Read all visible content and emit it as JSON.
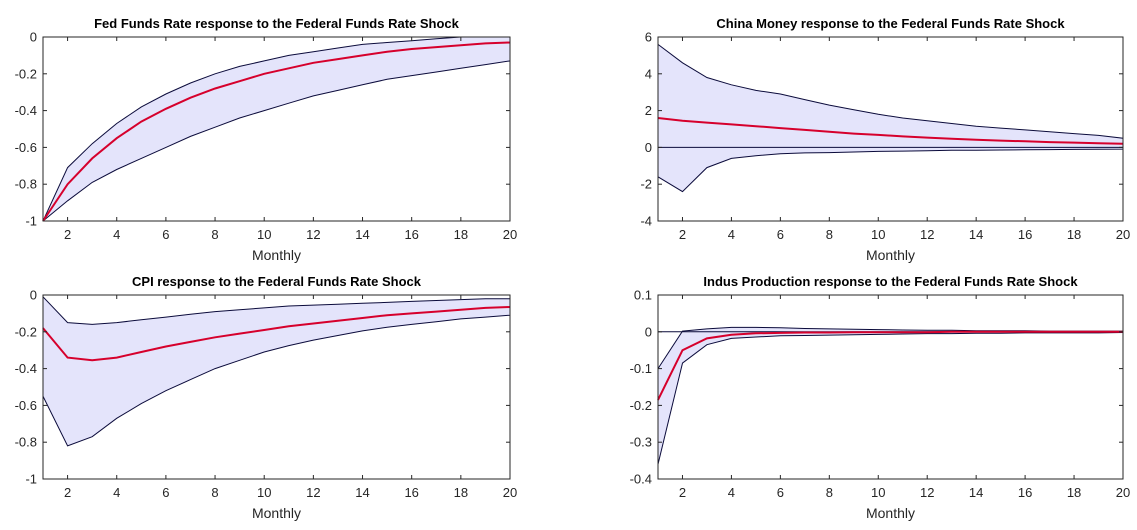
{
  "chart_data": [
    {
      "type": "area",
      "title": "Fed Funds Rate response to the Federal Funds Rate Shock",
      "xlabel": "Monthly",
      "ylabel": "",
      "x": [
        1,
        2,
        3,
        4,
        5,
        6,
        7,
        8,
        9,
        10,
        11,
        12,
        13,
        14,
        15,
        16,
        17,
        18,
        19,
        20
      ],
      "xlim": [
        1,
        20
      ],
      "ylim": [
        -1,
        0
      ],
      "xticks": [
        2,
        4,
        6,
        8,
        10,
        12,
        14,
        16,
        18,
        20
      ],
      "yticks": [
        -1,
        -0.8,
        -0.6,
        -0.4,
        -0.2,
        0
      ],
      "ytick_labels": [
        "-1",
        "-0.8",
        "-0.6",
        "-0.4",
        "-0.2",
        "0"
      ],
      "zero_line": false,
      "series": [
        {
          "role": "upper",
          "values": [
            -1,
            -0.71,
            -0.58,
            -0.47,
            -0.38,
            -0.31,
            -0.25,
            -0.2,
            -0.16,
            -0.13,
            -0.1,
            -0.08,
            -0.06,
            -0.04,
            -0.03,
            -0.02,
            -0.01,
            0,
            0,
            0
          ]
        },
        {
          "role": "response",
          "values": [
            -1,
            -0.8,
            -0.66,
            -0.55,
            -0.46,
            -0.39,
            -0.33,
            -0.28,
            -0.24,
            -0.2,
            -0.17,
            -0.14,
            -0.12,
            -0.1,
            -0.08,
            -0.065,
            -0.055,
            -0.045,
            -0.035,
            -0.03
          ]
        },
        {
          "role": "lower",
          "values": [
            -1,
            -0.89,
            -0.79,
            -0.72,
            -0.66,
            -0.6,
            -0.54,
            -0.49,
            -0.44,
            -0.4,
            -0.36,
            -0.32,
            -0.29,
            -0.26,
            -0.23,
            -0.21,
            -0.19,
            -0.17,
            -0.15,
            -0.13
          ]
        }
      ]
    },
    {
      "type": "area",
      "title": "China Money response to the Federal Funds Rate Shock",
      "xlabel": "Monthly",
      "ylabel": "",
      "x": [
        1,
        2,
        3,
        4,
        5,
        6,
        7,
        8,
        9,
        10,
        11,
        12,
        13,
        14,
        15,
        16,
        17,
        18,
        19,
        20
      ],
      "xlim": [
        1,
        20
      ],
      "ylim": [
        -4,
        6
      ],
      "xticks": [
        2,
        4,
        6,
        8,
        10,
        12,
        14,
        16,
        18,
        20
      ],
      "yticks": [
        -4,
        -2,
        0,
        2,
        4,
        6
      ],
      "ytick_labels": [
        "-4",
        "-2",
        "0",
        "2",
        "4",
        "6"
      ],
      "zero_line": true,
      "series": [
        {
          "role": "upper",
          "values": [
            5.6,
            4.6,
            3.8,
            3.4,
            3.1,
            2.9,
            2.6,
            2.3,
            2.05,
            1.8,
            1.6,
            1.45,
            1.3,
            1.15,
            1.05,
            0.95,
            0.85,
            0.75,
            0.65,
            0.5
          ]
        },
        {
          "role": "response",
          "values": [
            1.6,
            1.45,
            1.35,
            1.25,
            1.15,
            1.05,
            0.95,
            0.85,
            0.75,
            0.68,
            0.6,
            0.53,
            0.47,
            0.42,
            0.37,
            0.33,
            0.29,
            0.26,
            0.23,
            0.2
          ]
        },
        {
          "role": "lower",
          "values": [
            -1.6,
            -2.4,
            -1.1,
            -0.6,
            -0.45,
            -0.35,
            -0.3,
            -0.28,
            -0.25,
            -0.22,
            -0.2,
            -0.18,
            -0.16,
            -0.15,
            -0.14,
            -0.13,
            -0.12,
            -0.11,
            -0.1,
            -0.09
          ]
        }
      ]
    },
    {
      "type": "area",
      "title": "CPI response to the Federal Funds Rate Shock",
      "xlabel": "Monthly",
      "ylabel": "",
      "x": [
        1,
        2,
        3,
        4,
        5,
        6,
        7,
        8,
        9,
        10,
        11,
        12,
        13,
        14,
        15,
        16,
        17,
        18,
        19,
        20
      ],
      "xlim": [
        1,
        20
      ],
      "ylim": [
        -1,
        0
      ],
      "xticks": [
        2,
        4,
        6,
        8,
        10,
        12,
        14,
        16,
        18,
        20
      ],
      "yticks": [
        -1,
        -0.8,
        -0.6,
        -0.4,
        -0.2,
        0
      ],
      "ytick_labels": [
        "-1",
        "-0.8",
        "-0.6",
        "-0.4",
        "-0.2",
        "0"
      ],
      "zero_line": false,
      "series": [
        {
          "role": "upper",
          "values": [
            -0.01,
            -0.15,
            -0.16,
            -0.15,
            -0.135,
            -0.12,
            -0.105,
            -0.09,
            -0.08,
            -0.07,
            -0.06,
            -0.055,
            -0.05,
            -0.045,
            -0.04,
            -0.035,
            -0.03,
            -0.025,
            -0.02,
            -0.02
          ]
        },
        {
          "role": "response",
          "values": [
            -0.18,
            -0.34,
            -0.355,
            -0.34,
            -0.31,
            -0.28,
            -0.255,
            -0.23,
            -0.21,
            -0.19,
            -0.17,
            -0.155,
            -0.14,
            -0.125,
            -0.11,
            -0.1,
            -0.09,
            -0.08,
            -0.07,
            -0.065
          ]
        },
        {
          "role": "lower",
          "values": [
            -0.55,
            -0.82,
            -0.77,
            -0.67,
            -0.59,
            -0.52,
            -0.46,
            -0.4,
            -0.355,
            -0.31,
            -0.275,
            -0.245,
            -0.22,
            -0.195,
            -0.175,
            -0.16,
            -0.145,
            -0.13,
            -0.12,
            -0.11
          ]
        }
      ]
    },
    {
      "type": "area",
      "title": "Indus Production response to the Federal Funds Rate Shock",
      "xlabel": "Monthly",
      "ylabel": "",
      "x": [
        1,
        2,
        3,
        4,
        5,
        6,
        7,
        8,
        9,
        10,
        11,
        12,
        13,
        14,
        15,
        16,
        17,
        18,
        19,
        20
      ],
      "xlim": [
        1,
        20
      ],
      "ylim": [
        -0.4,
        0.1
      ],
      "xticks": [
        2,
        4,
        6,
        8,
        10,
        12,
        14,
        16,
        18,
        20
      ],
      "yticks": [
        -0.4,
        -0.3,
        -0.2,
        -0.1,
        0,
        0.1
      ],
      "ytick_labels": [
        "-0.4",
        "-0.3",
        "-0.2",
        "-0.1",
        "0",
        "0.1"
      ],
      "zero_line": true,
      "series": [
        {
          "role": "upper",
          "values": [
            -0.1,
            0.002,
            0.008,
            0.012,
            0.012,
            0.011,
            0.009,
            0.008,
            0.007,
            0.006,
            0.005,
            0.004,
            0.004,
            0.003,
            0.003,
            0.003,
            0.002,
            0.002,
            0.002,
            0.002
          ]
        },
        {
          "role": "response",
          "values": [
            -0.185,
            -0.05,
            -0.018,
            -0.008,
            -0.004,
            -0.003,
            -0.002,
            -0.002,
            -0.001,
            -0.001,
            -0.001,
            -0.001,
            0,
            0,
            0,
            0,
            0,
            0,
            0,
            0
          ]
        },
        {
          "role": "lower",
          "values": [
            -0.36,
            -0.085,
            -0.035,
            -0.018,
            -0.014,
            -0.011,
            -0.01,
            -0.009,
            -0.008,
            -0.007,
            -0.006,
            -0.005,
            -0.005,
            -0.004,
            -0.004,
            -0.003,
            -0.003,
            -0.003,
            -0.003,
            -0.002
          ]
        }
      ]
    }
  ]
}
